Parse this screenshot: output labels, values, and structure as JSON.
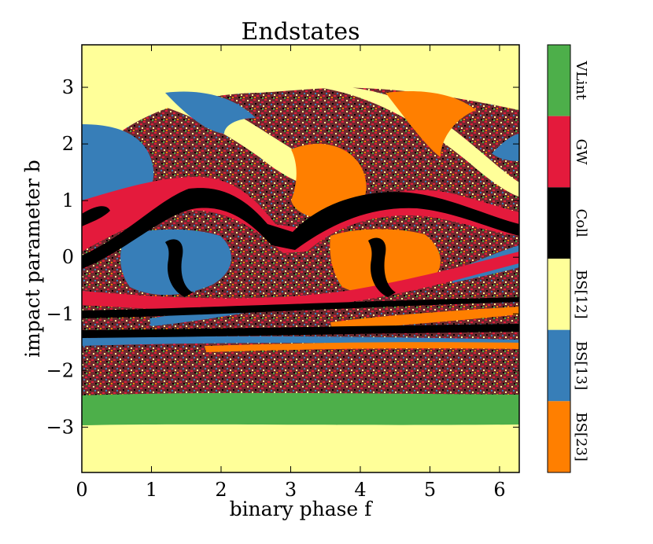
{
  "chart_data": {
    "type": "heatmap",
    "title": "Endstates",
    "xlabel": "binary phase f",
    "ylabel": "impact parameter b",
    "xlim": [
      0,
      6.283
    ],
    "ylim": [
      -3.8,
      3.75
    ],
    "xticks": [
      0,
      1,
      2,
      3,
      4,
      5,
      6
    ],
    "yticks": [
      -3,
      -2,
      -1,
      0,
      1,
      2,
      3
    ],
    "xtick_labels": [
      "0",
      "1",
      "2",
      "3",
      "4",
      "5",
      "6"
    ],
    "ytick_labels": [
      "−3",
      "−2",
      "−1",
      "0",
      "1",
      "2",
      "3"
    ],
    "grid": false,
    "categories": [
      "VLint",
      "GW",
      "Coll",
      "BS[12]",
      "BS[13]",
      "BS[23]"
    ],
    "colors": {
      "VLint": "#4daf4a",
      "GW": "#e41a3c",
      "Coll": "#000000",
      "BS[12]": "#ffff99",
      "BS[13]": "#377eb8",
      "BS[23]": "#ff7f00"
    },
    "regions": [
      {
        "endstate": "BS[12]",
        "b_range": [
          -3.8,
          -2.9
        ],
        "note": "bottom band"
      },
      {
        "endstate": "VLint",
        "b_range": [
          -2.9,
          -2.45
        ],
        "note": "green band"
      },
      {
        "endstate": "mixed",
        "b_range": [
          -2.45,
          -1.5
        ],
        "note": "chaotic scattering region"
      },
      {
        "endstate": "BS[12]",
        "b_range": [
          2.6,
          3.75
        ],
        "note": "top band"
      }
    ]
  }
}
